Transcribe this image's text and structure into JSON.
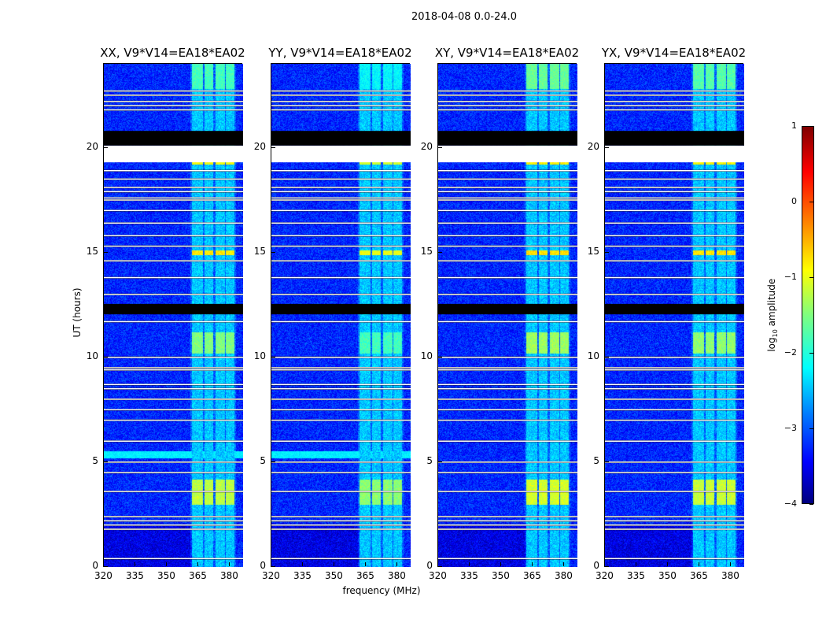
{
  "chart_data": {
    "type": "heatmap",
    "title": "2018-04-08 0.0-24.0",
    "xlabel": "frequency (MHz)",
    "ylabel": "UT (hours)",
    "xlim": [
      320,
      386.4
    ],
    "ylim": [
      0,
      24
    ],
    "xticks": [
      320,
      335,
      350,
      365,
      380
    ],
    "yticks": [
      0,
      5,
      10,
      15,
      20
    ],
    "colorbar": {
      "label_main": "log",
      "label_sub": "10",
      "label_rest": " amplitude",
      "range": [
        -4,
        1
      ],
      "ticks": [
        1,
        0,
        -1,
        -2,
        -3,
        -4
      ],
      "colormap": "jet"
    },
    "background_log_amplitude": -3.2,
    "panels": [
      {
        "title": "XX, V9*V14=EA18*EA02",
        "rfi_band_5h": true,
        "band_strength": 1.0
      },
      {
        "title": "YY, V9*V14=EA18*EA02",
        "rfi_band_5h": true,
        "band_strength": 1.2
      },
      {
        "title": "XY, V9*V14=EA18*EA02",
        "rfi_band_5h": false,
        "band_strength": 0.9
      },
      {
        "title": "YX, V9*V14=EA18*EA02",
        "rfi_band_5h": false,
        "band_strength": 0.95
      }
    ],
    "bright_channels_mhz": [
      [
        362,
        367
      ],
      [
        368,
        372
      ],
      [
        373,
        377.5
      ],
      [
        378,
        382
      ]
    ],
    "bright_time_ranges": [
      {
        "hours": [
          22.8,
          24
        ],
        "log_amplitude": -1.8
      },
      {
        "hours": [
          19.2,
          19.4
        ],
        "log_amplitude": -0.9
      },
      {
        "hours": [
          14.9,
          15.1
        ],
        "log_amplitude": -0.8
      },
      {
        "hours": [
          10.2,
          11.2
        ],
        "log_amplitude": -1.5
      },
      {
        "hours": [
          3.0,
          4.2
        ],
        "log_amplitude": -1.2
      }
    ],
    "blank_ranges_hours": [
      [
        20.1,
        20.8
      ],
      [
        12.05,
        12.55
      ]
    ],
    "flagged_ranges_hours": [
      [
        19.3,
        20.1
      ]
    ],
    "flagged_lines_hours": [
      0.4,
      1.8,
      2.0,
      2.2,
      2.4,
      3.6,
      4.5,
      5.0,
      6.0,
      7.0,
      7.5,
      8.0,
      8.5,
      8.7,
      9.4,
      9.5,
      10.0,
      11.7,
      13.0,
      13.8,
      14.6,
      15.3,
      15.8,
      16.4,
      17.0,
      17.5,
      17.6,
      17.9,
      18.1,
      18.5,
      18.9,
      21.8,
      22.0,
      22.2,
      22.5,
      22.7
    ]
  }
}
